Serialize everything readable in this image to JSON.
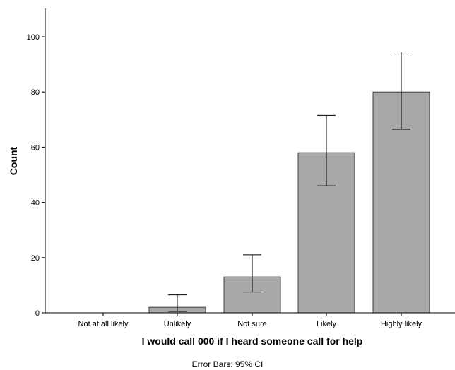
{
  "chart_data": {
    "type": "bar",
    "categories": [
      "Not at all likely",
      "Unlikely",
      "Not sure",
      "Likely",
      "Highly likely"
    ],
    "values": [
      0,
      2,
      13,
      58,
      80
    ],
    "error_bars": [
      {
        "low": 0,
        "high": 0
      },
      {
        "low": 0.5,
        "high": 6.5
      },
      {
        "low": 7.5,
        "high": 21
      },
      {
        "low": 46,
        "high": 71.5
      },
      {
        "low": 66.5,
        "high": 94.5
      }
    ],
    "xlabel": "I would call 000 if I heard someone call for help",
    "ylabel": "Count",
    "ylim": [
      0,
      110
    ],
    "yticks": [
      "0",
      "20",
      "40",
      "60",
      "80",
      "100"
    ],
    "footnote": "Error Bars: 95% CI",
    "grid": false,
    "bar_color": "#a9a9a9"
  }
}
